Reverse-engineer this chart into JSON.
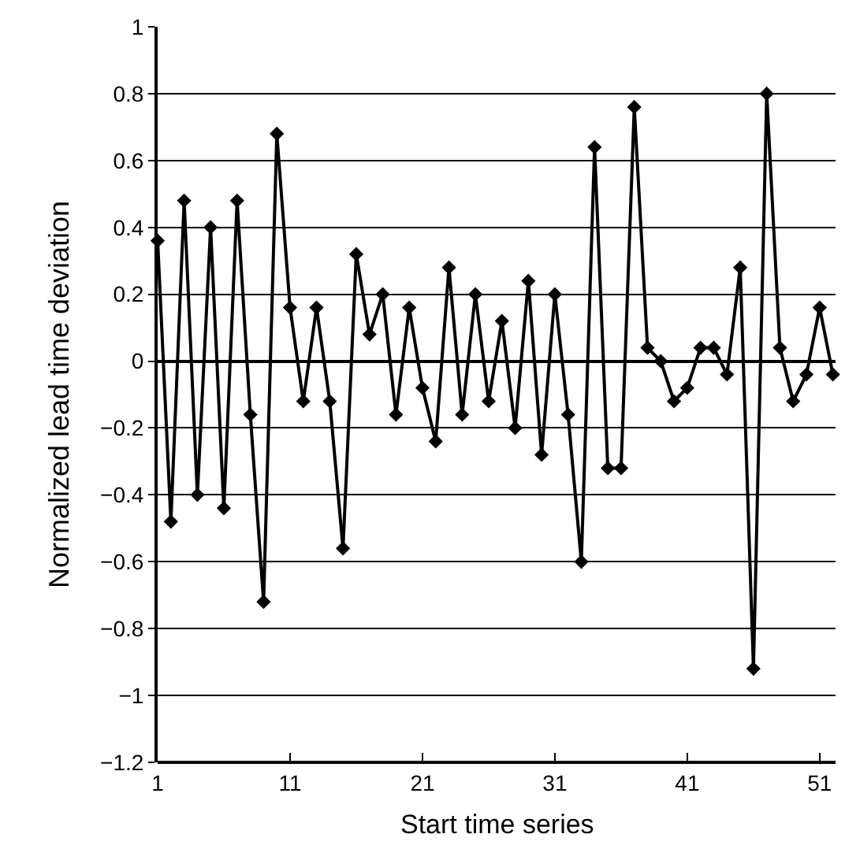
{
  "chart_data": {
    "type": "line",
    "xlabel": "Start time series",
    "ylabel": "Normalized lead time deviation",
    "x": [
      1,
      2,
      3,
      4,
      5,
      6,
      7,
      8,
      9,
      10,
      11,
      12,
      13,
      14,
      15,
      16,
      17,
      18,
      19,
      20,
      21,
      22,
      23,
      24,
      25,
      26,
      27,
      28,
      29,
      30,
      31,
      32,
      33,
      34,
      35,
      36,
      37,
      38,
      39,
      40,
      41,
      42,
      43,
      44,
      45,
      46,
      47,
      48,
      49,
      50,
      51,
      52
    ],
    "series": [
      {
        "color": "#000000",
        "values": [
          0.36,
          -0.48,
          0.48,
          -0.4,
          0.4,
          -0.44,
          0.48,
          -0.16,
          -0.72,
          0.68,
          0.16,
          -0.12,
          0.16,
          -0.12,
          -0.56,
          0.32,
          0.08,
          0.2,
          -0.16,
          0.16,
          -0.08,
          -0.24,
          0.28,
          -0.16,
          0.2,
          -0.12,
          0.12,
          -0.2,
          0.24,
          -0.28,
          0.2,
          -0.16,
          -0.6,
          0.64,
          -0.32,
          -0.32,
          0.76,
          0.04,
          0.0,
          -0.12,
          -0.08,
          0.04,
          0.04,
          -0.04,
          0.28,
          -0.92,
          0.8,
          0.04,
          -0.12,
          -0.04,
          0.16,
          -0.04
        ]
      }
    ],
    "xlim": [
      1,
      52.2
    ],
    "xticks": [
      1,
      11,
      21,
      31,
      41,
      51
    ],
    "ylim": [
      -1.2,
      1
    ],
    "yticks": [
      1,
      0.8,
      0.6,
      0.4,
      0.2,
      0,
      -0.2,
      -0.4,
      -0.6,
      -0.8,
      -1,
      -1.2
    ],
    "grid": "y",
    "marker": "diamond",
    "line_style": "solid"
  }
}
